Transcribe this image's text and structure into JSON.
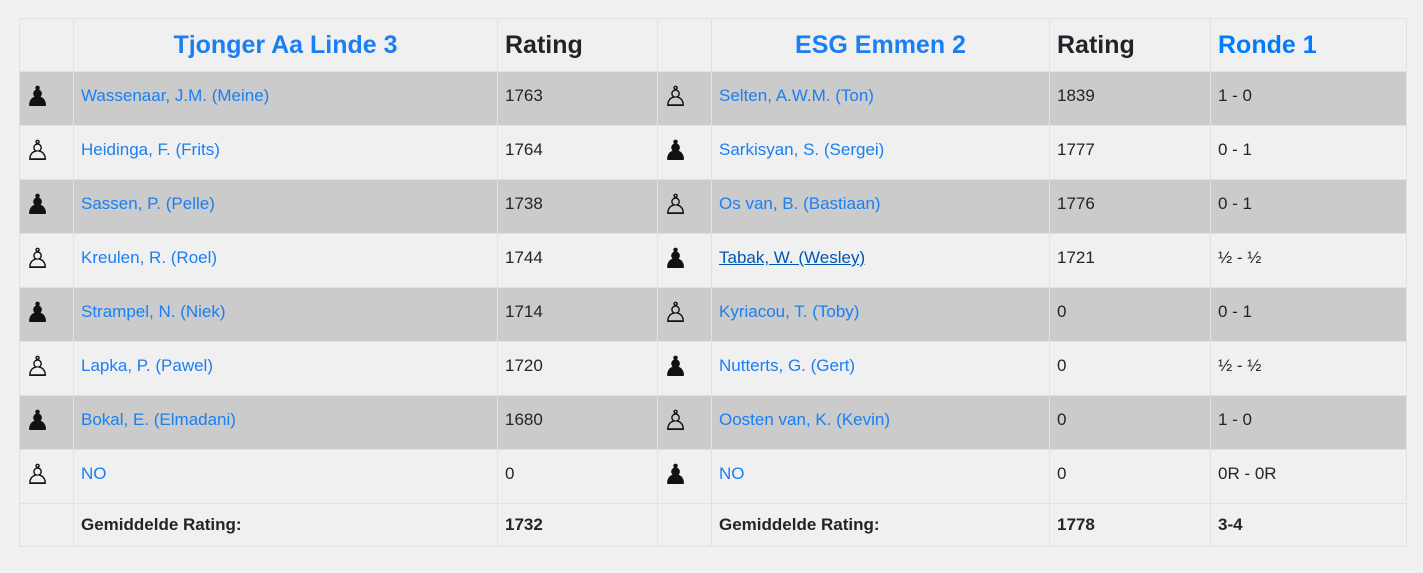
{
  "header": {
    "home_team": "Tjonger Aa Linde 3",
    "rating_label": "Rating",
    "away_team": "ESG Emmen 2",
    "round": "Ronde 1"
  },
  "rows": [
    {
      "home_color": "black",
      "home": "Wassenaar, J.M. (Meine)",
      "home_rating": "1763",
      "away_color": "white",
      "away": "Selten, A.W.M. (Ton)",
      "away_rating": "1839",
      "result": "1 - 0"
    },
    {
      "home_color": "white",
      "home": "Heidinga, F. (Frits)",
      "home_rating": "1764",
      "away_color": "black",
      "away": "Sarkisyan, S. (Sergei)",
      "away_rating": "1777",
      "result": "0 - 1"
    },
    {
      "home_color": "black",
      "home": "Sassen, P. (Pelle)",
      "home_rating": "1738",
      "away_color": "white",
      "away": "Os van, B. (Bastiaan)",
      "away_rating": "1776",
      "result": "0 - 1"
    },
    {
      "home_color": "white",
      "home": "Kreulen, R. (Roel)",
      "home_rating": "1744",
      "away_color": "black",
      "away": "Tabak, W. (Wesley)",
      "away_rating": "1721",
      "result": "½ - ½",
      "away_hover": true
    },
    {
      "home_color": "black",
      "home": "Strampel, N. (Niek)",
      "home_rating": "1714",
      "away_color": "white",
      "away": "Kyriacou, T. (Toby)",
      "away_rating": "0",
      "result": "0 - 1"
    },
    {
      "home_color": "white",
      "home": "Lapka, P. (Pawel)",
      "home_rating": "1720",
      "away_color": "black",
      "away": "Nutterts, G. (Gert)",
      "away_rating": "0",
      "result": "½ - ½"
    },
    {
      "home_color": "black",
      "home": "Bokal, E. (Elmadani)",
      "home_rating": "1680",
      "away_color": "white",
      "away": "Oosten van, K. (Kevin)",
      "away_rating": "0",
      "result": "1 - 0"
    },
    {
      "home_color": "white",
      "home": "NO",
      "home_rating": "0",
      "away_color": "black",
      "away": "NO",
      "away_rating": "0",
      "result": "0R - 0R"
    }
  ],
  "footer": {
    "avg_label": "Gemiddelde Rating:",
    "home_avg": "1732",
    "away_avg": "1778",
    "total": "3-4"
  },
  "icons": {
    "black": "black-pawn-icon",
    "white": "white-pawn-icon"
  },
  "colors": {
    "link": "#1a7ff2",
    "header_link": "#007bff",
    "odd_row": "#cbcbcb",
    "even_row": "#f0f0f0"
  }
}
